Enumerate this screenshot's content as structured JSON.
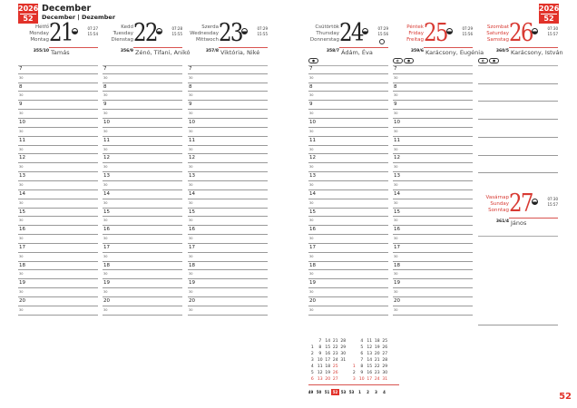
{
  "header": {
    "year": "2026",
    "week": "52",
    "month": "December",
    "month_sub": "December | Dezember"
  },
  "hours": [
    "7",
    "8",
    "9",
    "10",
    "11",
    "12",
    "13",
    "14",
    "15",
    "16",
    "17",
    "18",
    "19",
    "20"
  ],
  "half_label": "30",
  "days": [
    {
      "names": [
        "Hétfő",
        "Monday",
        "Montag"
      ],
      "num": "21",
      "rise": "07:27",
      "set": "15:54",
      "daynum": "355/10",
      "nameday": "Tamás",
      "holiday": false
    },
    {
      "names": [
        "Kedd",
        "Tuesday",
        "Dienstag"
      ],
      "num": "22",
      "rise": "07:28",
      "set": "15:55",
      "daynum": "356/9",
      "nameday": "Zénó, Tifani, Anikó",
      "holiday": false
    },
    {
      "names": [
        "Szerda",
        "Wednesday",
        "Mittwoch"
      ],
      "num": "23",
      "rise": "07:29",
      "set": "15:55",
      "daynum": "357/8",
      "nameday": "Viktória, Niké",
      "holiday": false
    },
    {
      "names": [
        "Csütörtök",
        "Thursday",
        "Donnerstag"
      ],
      "num": "24",
      "rise": "07:29",
      "set": "15:56",
      "daynum": "358/7",
      "nameday": "Ádám, Éva",
      "holiday": false,
      "moon": "full-moon"
    },
    {
      "names": [
        "Péntek",
        "Friday",
        "Freitag"
      ],
      "num": "25",
      "rise": "07:29",
      "set": "15:56",
      "daynum": "359/6",
      "nameday": "Karácsony, Eugénia",
      "holiday": true
    },
    {
      "names": [
        "Szombat",
        "Saturday",
        "Samstag"
      ],
      "num": "26",
      "rise": "07:30",
      "set": "15:57",
      "daynum": "360/5",
      "nameday": "Karácsony, István",
      "holiday": true
    },
    {
      "names": [
        "Vasárnap",
        "Sunday",
        "Sonntag"
      ],
      "num": "27",
      "rise": "07:30",
      "set": "15:57",
      "daynum": "361/4",
      "nameday": "János",
      "holiday": true
    }
  ],
  "mini_calendar": {
    "december": [
      [
        "",
        "7",
        "14",
        "21",
        "28"
      ],
      [
        "1",
        "8",
        "15",
        "22",
        "29"
      ],
      [
        "2",
        "9",
        "16",
        "23",
        "30"
      ],
      [
        "3",
        "10",
        "17",
        "24",
        "31"
      ],
      [
        "4",
        "11",
        "18",
        "25",
        ""
      ],
      [
        "5",
        "12",
        "19",
        "26",
        ""
      ],
      [
        "6",
        "13",
        "20",
        "27",
        ""
      ]
    ],
    "january": [
      [
        "",
        "4",
        "11",
        "18",
        "25"
      ],
      [
        "",
        "5",
        "12",
        "19",
        "26"
      ],
      [
        "",
        "6",
        "13",
        "20",
        "27"
      ],
      [
        "",
        "7",
        "14",
        "21",
        "28"
      ],
      [
        "1",
        "8",
        "15",
        "22",
        "29"
      ],
      [
        "2",
        "9",
        "16",
        "23",
        "30"
      ],
      [
        "3",
        "10",
        "17",
        "24",
        "31"
      ]
    ],
    "weeks": [
      "49",
      "50",
      "51",
      "52",
      "53",
      "53",
      "1",
      "2",
      "3",
      "4"
    ],
    "current_week": "52"
  },
  "page_number": "52",
  "colors": {
    "accent": "#e2322a"
  }
}
